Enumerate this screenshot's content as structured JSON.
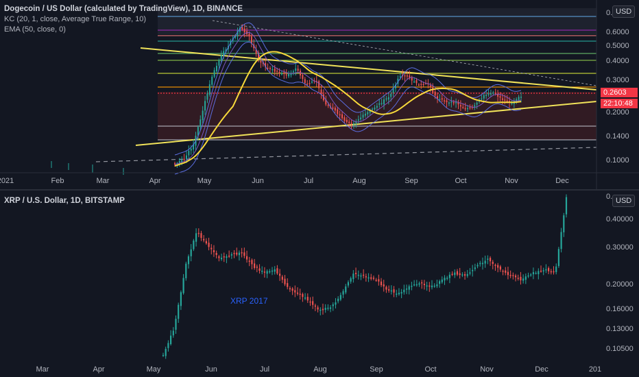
{
  "top_chart": {
    "title": "Dogecoin / US Dollar (calculated by TradingView), 1D, BINANCE",
    "indicators": [
      "KC (20, 1, close, Average True Range, 10)",
      "EMA (50, close, 0)"
    ],
    "currency": "USD",
    "price_ticks": [
      "0.",
      "0.6000",
      "0.5000",
      "0.4000",
      "0.3000",
      "0.2000",
      "0.1400",
      "0.1000"
    ],
    "last_price": "0.2603",
    "countdown": "22:10:48",
    "time_labels": [
      "2021",
      "Feb",
      "Mar",
      "Apr",
      "May",
      "Jun",
      "Jul",
      "Aug",
      "Sep",
      "Oct",
      "Nov",
      "Dec"
    ],
    "colors": {
      "up": "#26a69a",
      "down": "#ef5350",
      "ema": "#f7d93b",
      "kc": "#5b6ee1",
      "trend": "#f1e35a",
      "price_line": "#f23645"
    }
  },
  "bottom_chart": {
    "title": "XRP / U.S. Dollar, 1D, BITSTAMP",
    "currency": "USD",
    "price_ticks": [
      "0.",
      "0.40000",
      "0.30000",
      "0.20000",
      "0.16000",
      "0.13000",
      "0.10500"
    ],
    "time_labels": [
      "Mar",
      "Apr",
      "May",
      "Jun",
      "Jul",
      "Aug",
      "Sep",
      "Oct",
      "Nov",
      "Dec",
      "201"
    ],
    "annotation": "XRP 2017"
  }
}
